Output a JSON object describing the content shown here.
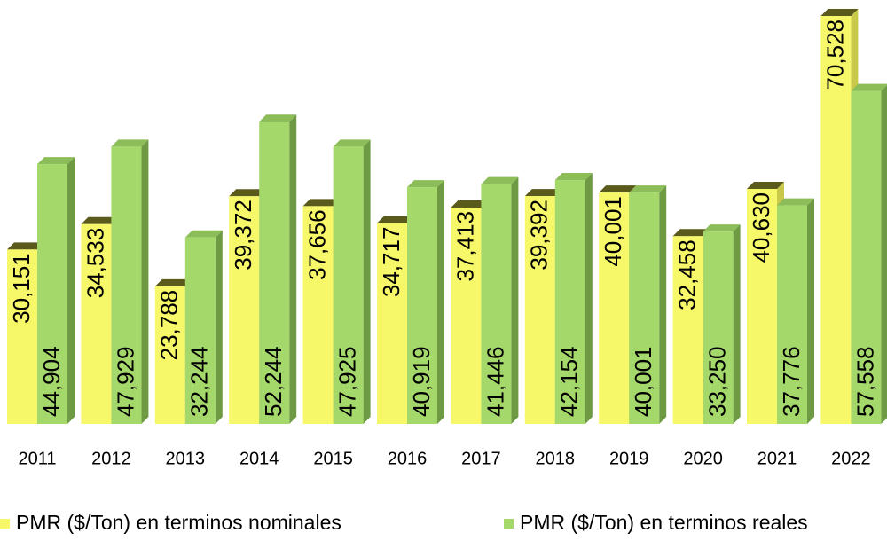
{
  "chart_data": {
    "type": "bar3d",
    "categories": [
      "2011",
      "2012",
      "2013",
      "2014",
      "2015",
      "2016",
      "2017",
      "2018",
      "2019",
      "2020",
      "2021",
      "2022"
    ],
    "series": [
      {
        "name": "PMR ($/Ton) en terminos nominales",
        "color": "#f7f76a",
        "values": [
          30151,
          34533,
          23788,
          39372,
          37656,
          34717,
          37413,
          39392,
          40001,
          32458,
          40630,
          70528
        ],
        "value_labels": [
          "30,151",
          "34,533",
          "23,788",
          "39,372",
          "37,656",
          "34,717",
          "37,413",
          "39,392",
          "40,001",
          "32,458",
          "40,630",
          "70,528"
        ]
      },
      {
        "name": "PMR ($/Ton) en terminos reales",
        "color": "#a5d86a",
        "values": [
          44904,
          47929,
          32244,
          52244,
          47925,
          40919,
          41446,
          42154,
          40001,
          33250,
          37776,
          57558
        ],
        "value_labels": [
          "44,904",
          "47,929",
          "32,244",
          "52,244",
          "47,925",
          "40,919",
          "41,446",
          "42,154",
          "40,001",
          "33,250",
          "37,776",
          "57,558"
        ]
      }
    ],
    "legend": "bottom"
  }
}
